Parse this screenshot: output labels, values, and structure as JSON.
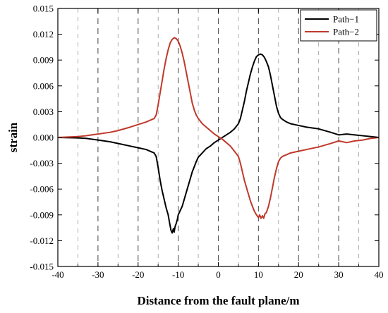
{
  "chart_data": {
    "type": "line",
    "xlabel": "Distance from the fault plane/m",
    "ylabel": "strain",
    "xlim": [
      -40,
      40
    ],
    "ylim": [
      -0.015,
      0.015
    ],
    "x_ticks": [
      "-40",
      "-30",
      "-20",
      "-10",
      "0",
      "10",
      "20",
      "30",
      "40"
    ],
    "y_ticks": [
      "-0.015",
      "-0.012",
      "-0.009",
      "-0.006",
      "-0.003",
      "0.000",
      "0.003",
      "0.006",
      "0.009",
      "0.012",
      "0.015"
    ],
    "grid": "dashed vertical lines every 5 m",
    "legend_position": "top-right",
    "series": [
      {
        "name": "Path−1",
        "color": "#000000",
        "points": [
          [
            -40,
            0
          ],
          [
            -35,
            -5e-05
          ],
          [
            -33,
            -0.0001
          ],
          [
            -30,
            -0.0003
          ],
          [
            -27,
            -0.0005
          ],
          [
            -25,
            -0.0007
          ],
          [
            -22,
            -0.001
          ],
          [
            -20,
            -0.0012
          ],
          [
            -18,
            -0.0014
          ],
          [
            -17,
            -0.0016
          ],
          [
            -16,
            -0.0018
          ],
          [
            -15.5,
            -0.0022
          ],
          [
            -15,
            -0.0035
          ],
          [
            -14.5,
            -0.005
          ],
          [
            -14,
            -0.0062
          ],
          [
            -13.5,
            -0.0072
          ],
          [
            -13,
            -0.0082
          ],
          [
            -12.5,
            -0.009
          ],
          [
            -12.2,
            -0.0098
          ],
          [
            -12,
            -0.0103
          ],
          [
            -11.8,
            -0.0108
          ],
          [
            -11.5,
            -0.0111
          ],
          [
            -11.2,
            -0.0106
          ],
          [
            -11,
            -0.011
          ],
          [
            -10.8,
            -0.0104
          ],
          [
            -10.5,
            -0.01
          ],
          [
            -10.2,
            -0.0095
          ],
          [
            -10,
            -0.009
          ],
          [
            -9.5,
            -0.0085
          ],
          [
            -9,
            -0.008
          ],
          [
            -8.5,
            -0.0072
          ],
          [
            -8,
            -0.0064
          ],
          [
            -7.5,
            -0.0056
          ],
          [
            -7,
            -0.0048
          ],
          [
            -6.5,
            -0.004
          ],
          [
            -6,
            -0.0034
          ],
          [
            -5.5,
            -0.0028
          ],
          [
            -5,
            -0.0023
          ],
          [
            -4,
            -0.0018
          ],
          [
            -3,
            -0.0013
          ],
          [
            -2,
            -0.001
          ],
          [
            -1,
            -0.0006
          ],
          [
            0,
            -0.0003
          ],
          [
            1,
            0.0
          ],
          [
            2,
            0.0003
          ],
          [
            3,
            0.0006
          ],
          [
            4,
            0.001
          ],
          [
            5,
            0.0016
          ],
          [
            5.5,
            0.0022
          ],
          [
            6,
            0.0032
          ],
          [
            6.5,
            0.0042
          ],
          [
            7,
            0.0054
          ],
          [
            7.5,
            0.0064
          ],
          [
            8,
            0.0074
          ],
          [
            8.5,
            0.0082
          ],
          [
            9,
            0.0089
          ],
          [
            9.5,
            0.0094
          ],
          [
            10,
            0.0096
          ],
          [
            10.5,
            0.0097
          ],
          [
            11,
            0.0096
          ],
          [
            11.5,
            0.0093
          ],
          [
            12,
            0.0088
          ],
          [
            12.5,
            0.0082
          ],
          [
            13,
            0.0072
          ],
          [
            13.5,
            0.006
          ],
          [
            14,
            0.0048
          ],
          [
            14.5,
            0.0036
          ],
          [
            15,
            0.0028
          ],
          [
            15.5,
            0.0023
          ],
          [
            16,
            0.0021
          ],
          [
            17,
            0.0018
          ],
          [
            18,
            0.0016
          ],
          [
            20,
            0.0014
          ],
          [
            22,
            0.0012
          ],
          [
            25,
            0.001
          ],
          [
            28,
            0.0006
          ],
          [
            30,
            0.0003
          ],
          [
            32,
            0.0004
          ],
          [
            34,
            0.0003
          ],
          [
            36,
            0.0002
          ],
          [
            38,
            0.0001
          ],
          [
            40,
            0.0
          ]
        ]
      },
      {
        "name": "Path−2",
        "color": "#c0392b",
        "points": [
          [
            -40,
            0
          ],
          [
            -35,
            0.0001
          ],
          [
            -33,
            0.0002
          ],
          [
            -30,
            0.0004
          ],
          [
            -27,
            0.0006
          ],
          [
            -25,
            0.0008
          ],
          [
            -22,
            0.0012
          ],
          [
            -20,
            0.0015
          ],
          [
            -18,
            0.0018
          ],
          [
            -17,
            0.002
          ],
          [
            -16,
            0.0022
          ],
          [
            -15.5,
            0.0026
          ],
          [
            -15,
            0.0038
          ],
          [
            -14.5,
            0.0052
          ],
          [
            -14,
            0.0066
          ],
          [
            -13.5,
            0.008
          ],
          [
            -13,
            0.0092
          ],
          [
            -12.5,
            0.0102
          ],
          [
            -12,
            0.011
          ],
          [
            -11.5,
            0.0114
          ],
          [
            -11,
            0.0116
          ],
          [
            -10.5,
            0.0115
          ],
          [
            -10,
            0.0112
          ],
          [
            -9.5,
            0.0106
          ],
          [
            -9,
            0.0098
          ],
          [
            -8.5,
            0.0088
          ],
          [
            -8,
            0.0076
          ],
          [
            -7.5,
            0.0064
          ],
          [
            -7,
            0.0052
          ],
          [
            -6.5,
            0.004
          ],
          [
            -6,
            0.0032
          ],
          [
            -5.5,
            0.0026
          ],
          [
            -5,
            0.0022
          ],
          [
            -4,
            0.0016
          ],
          [
            -3,
            0.0012
          ],
          [
            -2,
            0.0008
          ],
          [
            -1,
            0.0004
          ],
          [
            0,
            0.0001
          ],
          [
            1,
            -0.0002
          ],
          [
            2,
            -0.0006
          ],
          [
            3,
            -0.001
          ],
          [
            4,
            -0.0016
          ],
          [
            5,
            -0.0022
          ],
          [
            5.5,
            -0.003
          ],
          [
            6,
            -0.004
          ],
          [
            6.5,
            -0.005
          ],
          [
            7,
            -0.0058
          ],
          [
            7.5,
            -0.0066
          ],
          [
            8,
            -0.0074
          ],
          [
            8.5,
            -0.008
          ],
          [
            9,
            -0.0086
          ],
          [
            9.5,
            -0.009
          ],
          [
            10,
            -0.0093
          ],
          [
            10.3,
            -0.009
          ],
          [
            10.6,
            -0.0094
          ],
          [
            11,
            -0.0091
          ],
          [
            11.3,
            -0.0094
          ],
          [
            11.6,
            -0.0089
          ],
          [
            12,
            -0.0087
          ],
          [
            12.5,
            -0.008
          ],
          [
            13,
            -0.007
          ],
          [
            13.5,
            -0.0058
          ],
          [
            14,
            -0.0046
          ],
          [
            14.5,
            -0.0036
          ],
          [
            15,
            -0.0028
          ],
          [
            15.5,
            -0.0024
          ],
          [
            16,
            -0.0022
          ],
          [
            17,
            -0.002
          ],
          [
            18,
            -0.0018
          ],
          [
            20,
            -0.0016
          ],
          [
            22,
            -0.0014
          ],
          [
            25,
            -0.0011
          ],
          [
            28,
            -0.0007
          ],
          [
            30,
            -0.0004
          ],
          [
            32,
            -0.0006
          ],
          [
            34,
            -0.0004
          ],
          [
            36,
            -0.0003
          ],
          [
            38,
            -0.0001
          ],
          [
            40,
            0.0
          ]
        ]
      }
    ]
  }
}
